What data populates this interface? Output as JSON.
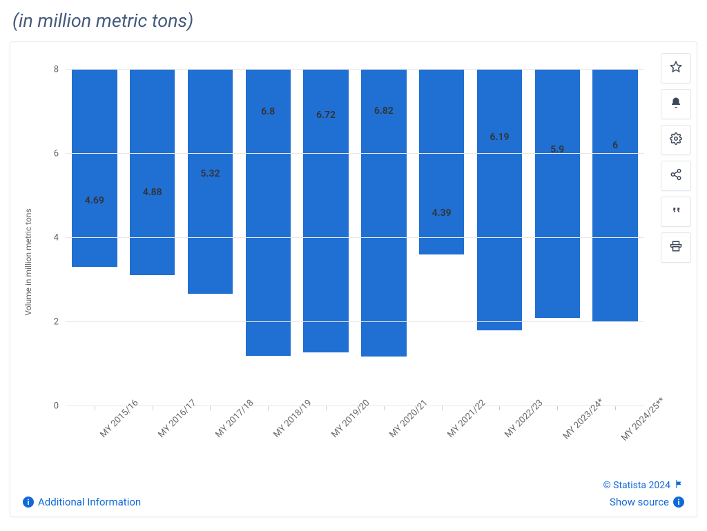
{
  "subtitle": "(in million metric tons)",
  "chart": {
    "type": "bar",
    "y_axis_title": "Volume in million metric tons",
    "ylim": [
      0,
      8
    ],
    "ytick_step": 2,
    "yticks": [
      0,
      2,
      4,
      6,
      8
    ],
    "bar_color": "#206fd3",
    "grid_color": "#e8e8e8",
    "background_color": "#ffffff",
    "value_label_color": "#333333",
    "tick_label_color": "#666666",
    "value_label_fontsize": 14,
    "tick_label_fontsize": 13,
    "axis_title_fontsize": 12,
    "bar_width_ratio": 0.78,
    "categories": [
      "MY 2015/16",
      "MY 2016/17",
      "MY 2017/18",
      "MY 2018/19",
      "MY 2019/20",
      "MY 2020/21",
      "MY 2021/22",
      "MY 2022/23",
      "MY 2023/24*",
      "MY 2024/25**"
    ],
    "values": [
      4.69,
      4.88,
      5.32,
      6.8,
      6.72,
      6.82,
      4.39,
      6.19,
      5.9,
      6
    ],
    "value_labels": [
      "4.69",
      "4.88",
      "5.32",
      "6.8",
      "6.72",
      "6.82",
      "4.39",
      "6.19",
      "5.9",
      "6"
    ]
  },
  "actions": {
    "favorite": "star-icon",
    "alert": "bell-icon",
    "settings": "gear-icon",
    "share": "share-icon",
    "cite": "quote-icon",
    "print": "print-icon"
  },
  "footer": {
    "additional_info_label": "Additional Information",
    "copyright": "© Statista 2024",
    "show_source_label": "Show source"
  },
  "colors": {
    "link": "#0f69d7",
    "subtitle": "#455a7c",
    "card_border": "#e6e9ee"
  }
}
